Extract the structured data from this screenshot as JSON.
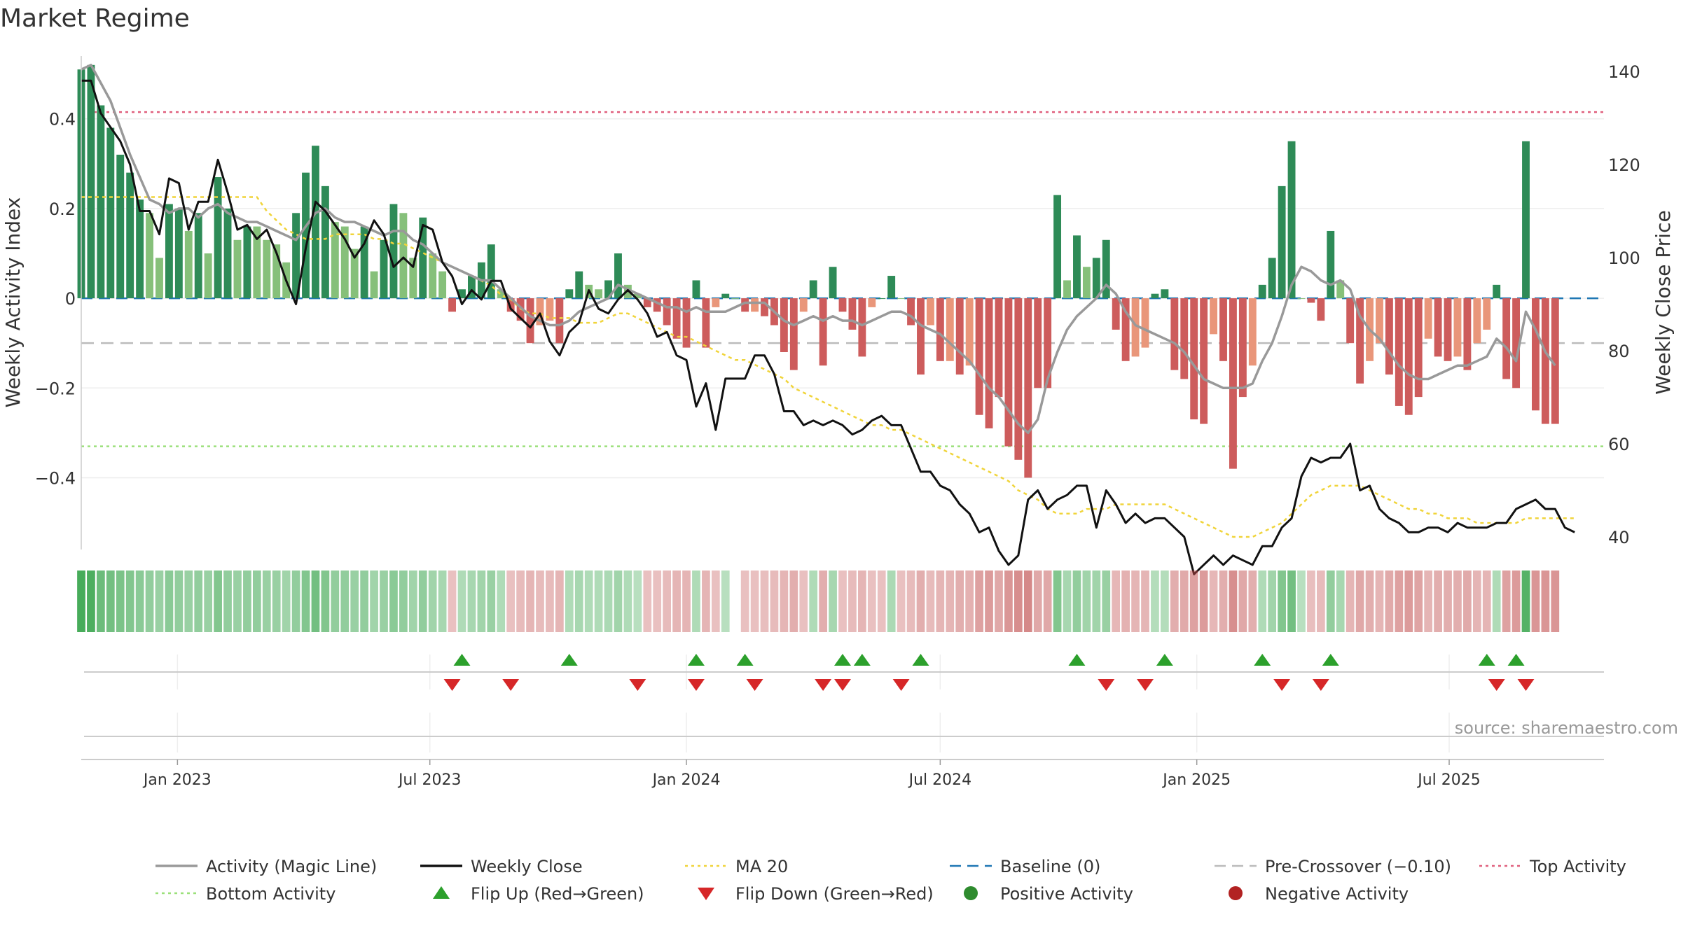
{
  "chart_data": {
    "type": "bar",
    "title": "Market Regime",
    "source": "source: sharemaestro.com",
    "ylabel_left": "Weekly Activity Index",
    "ylabel_right": "Weekly Close Price",
    "xlim": [
      "2022-10-24",
      "2025-10-20"
    ],
    "ylim_left": [
      -0.56,
      0.54
    ],
    "ylim_right": [
      37.3,
      143.3
    ],
    "yticks_left": [
      {
        "v": 0.4,
        "label": "0.4"
      },
      {
        "v": 0.2,
        "label": "0.2"
      },
      {
        "v": 0,
        "label": "0"
      },
      {
        "v": -0.2,
        "label": "−0.2"
      },
      {
        "v": -0.4,
        "label": "−0.4"
      }
    ],
    "yticks_right": [
      {
        "v": 140,
        "label": "140"
      },
      {
        "v": 120,
        "label": "120"
      },
      {
        "v": 100,
        "label": "100"
      },
      {
        "v": 80,
        "label": "80"
      },
      {
        "v": 60,
        "label": "60"
      },
      {
        "v": 40,
        "label": "40"
      }
    ],
    "xticks": [
      {
        "date": "2023-01-01",
        "label": "Jan 2023"
      },
      {
        "date": "2023-07-01",
        "label": "Jul 2023"
      },
      {
        "date": "2024-01-01",
        "label": "Jan 2024"
      },
      {
        "date": "2024-07-01",
        "label": "Jul 2024"
      },
      {
        "date": "2025-01-01",
        "label": "Jan 2025"
      },
      {
        "date": "2025-07-01",
        "label": "Jul 2025"
      }
    ],
    "reference_lines": {
      "top_activity": 0.415,
      "bottom_activity": -0.33,
      "pre_crossover": -0.1,
      "baseline": 0
    },
    "grid": true,
    "legend_placement": "bottom",
    "colors": {
      "strong_positive": "#2e8b57",
      "positive": "#86c07a",
      "strong_negative": "#cd5c5c",
      "negative": "#e9967a",
      "magic_line": "#999999",
      "weekly_close": "#111111",
      "ma20": "#f0d43a",
      "baseline": "#1f77b4",
      "pre_crossover": "#bbbbbb",
      "top_activity": "#e0607e",
      "bottom_activity": "#9be07a",
      "flip_up": "#2ca02c",
      "flip_down": "#d62728",
      "positive_dot": "#2e8b2e",
      "negative_dot": "#b22222"
    },
    "start_date": "2022-10-24",
    "series": [
      {
        "name": "Weekly Activity Index (bars)",
        "values": [
          0.51,
          0.52,
          0.43,
          0.38,
          0.32,
          0.28,
          0.22,
          0.19,
          0.09,
          0.21,
          0.2,
          0.15,
          0.19,
          0.1,
          0.27,
          0.2,
          0.13,
          0.16,
          0.16,
          0.13,
          0.12,
          0.08,
          0.19,
          0.28,
          0.34,
          0.25,
          0.17,
          0.16,
          0.11,
          0.16,
          0.06,
          0.13,
          0.21,
          0.19,
          0.09,
          0.18,
          0.1,
          0.06,
          -0.03,
          0.02,
          0.05,
          0.08,
          0.12,
          0.02,
          -0.03,
          -0.05,
          -0.1,
          -0.06,
          -0.05,
          -0.1,
          0.02,
          0.06,
          0.03,
          0.02,
          0.04,
          0.1,
          0.03,
          0.01,
          -0.02,
          -0.03,
          -0.06,
          -0.09,
          -0.11,
          0.04,
          -0.11,
          -0.02,
          0.01,
          0.0,
          -0.03,
          -0.03,
          -0.04,
          -0.06,
          -0.12,
          -0.16,
          -0.03,
          0.04,
          -0.15,
          0.07,
          -0.03,
          -0.07,
          -0.13,
          -0.02,
          0.0,
          0.05,
          0.0,
          -0.06,
          -0.17,
          -0.06,
          -0.14,
          -0.14,
          -0.17,
          -0.15,
          -0.26,
          -0.29,
          -0.22,
          -0.33,
          -0.36,
          -0.4,
          -0.2,
          -0.2,
          0.23,
          0.04,
          0.14,
          0.07,
          0.09,
          0.13,
          -0.07,
          -0.14,
          -0.13,
          -0.11,
          0.01,
          0.02,
          -0.16,
          -0.18,
          -0.27,
          -0.28,
          -0.08,
          -0.14,
          -0.38,
          -0.22,
          -0.15,
          0.03,
          0.09,
          0.25,
          0.35,
          0.0,
          -0.01,
          -0.05,
          0.15,
          0.04,
          -0.1,
          -0.19,
          -0.14,
          -0.1,
          -0.17,
          -0.24,
          -0.26,
          -0.22,
          -0.09,
          -0.13,
          -0.14,
          -0.13,
          -0.16,
          -0.1,
          -0.07,
          0.03,
          -0.18,
          -0.2,
          0.35,
          -0.25,
          -0.28,
          -0.28
        ]
      },
      {
        "name": "Activity (Magic Line)",
        "values": [
          0.51,
          0.52,
          0.48,
          0.44,
          0.38,
          0.32,
          0.27,
          0.22,
          0.21,
          0.19,
          0.2,
          0.2,
          0.18,
          0.2,
          0.21,
          0.19,
          0.18,
          0.17,
          0.17,
          0.16,
          0.15,
          0.14,
          0.13,
          0.16,
          0.19,
          0.2,
          0.18,
          0.17,
          0.17,
          0.16,
          0.15,
          0.14,
          0.15,
          0.15,
          0.13,
          0.12,
          0.1,
          0.08,
          0.07,
          0.06,
          0.05,
          0.04,
          0.04,
          0.02,
          0.0,
          -0.02,
          -0.04,
          -0.05,
          -0.06,
          -0.06,
          -0.05,
          -0.03,
          -0.02,
          -0.01,
          0.0,
          0.03,
          0.02,
          0.01,
          0.0,
          -0.01,
          -0.02,
          -0.02,
          -0.03,
          -0.02,
          -0.03,
          -0.03,
          -0.03,
          -0.02,
          -0.01,
          -0.01,
          -0.01,
          -0.03,
          -0.05,
          -0.06,
          -0.05,
          -0.04,
          -0.05,
          -0.04,
          -0.05,
          -0.05,
          -0.06,
          -0.05,
          -0.04,
          -0.03,
          -0.03,
          -0.04,
          -0.06,
          -0.07,
          -0.08,
          -0.1,
          -0.12,
          -0.14,
          -0.17,
          -0.2,
          -0.22,
          -0.25,
          -0.28,
          -0.3,
          -0.27,
          -0.18,
          -0.12,
          -0.07,
          -0.04,
          -0.02,
          0.0,
          0.03,
          0.01,
          -0.03,
          -0.06,
          -0.07,
          -0.08,
          -0.09,
          -0.1,
          -0.12,
          -0.15,
          -0.18,
          -0.19,
          -0.2,
          -0.2,
          -0.2,
          -0.19,
          -0.14,
          -0.1,
          -0.04,
          0.03,
          0.07,
          0.06,
          0.04,
          0.03,
          0.04,
          0.02,
          -0.04,
          -0.07,
          -0.09,
          -0.12,
          -0.15,
          -0.17,
          -0.18,
          -0.18,
          -0.17,
          -0.16,
          -0.15,
          -0.15,
          -0.14,
          -0.13,
          -0.09,
          -0.11,
          -0.14,
          -0.03,
          -0.07,
          -0.12,
          -0.15
        ]
      },
      {
        "name": "Weekly Close",
        "values": [
          138,
          138,
          131,
          128,
          125,
          120,
          110,
          110,
          105,
          117,
          116,
          106,
          112,
          112,
          121,
          114,
          106,
          107,
          104,
          106,
          101,
          95,
          90,
          102,
          112,
          110,
          107,
          104,
          100,
          103,
          108,
          105,
          98,
          100,
          98,
          107,
          106,
          99,
          96,
          90,
          93,
          91,
          95,
          95,
          89,
          87,
          85,
          88,
          82,
          79,
          84,
          86,
          93,
          89,
          88,
          91,
          93,
          91,
          88,
          83,
          84,
          79,
          78,
          68,
          73,
          63,
          74,
          74,
          74,
          79,
          79,
          75,
          67,
          67,
          64,
          65,
          64,
          65,
          64,
          62,
          63,
          65,
          66,
          64,
          64,
          59,
          54,
          54,
          51,
          50,
          47,
          45,
          41,
          42,
          37,
          34,
          36,
          48,
          50,
          46,
          48,
          49,
          51,
          51,
          42,
          50,
          47,
          43,
          45,
          43,
          44,
          44,
          42,
          40,
          32,
          34,
          36,
          34,
          36,
          35,
          34,
          38,
          38,
          42,
          44,
          53,
          57,
          56,
          57,
          57,
          60,
          50,
          51,
          46,
          44,
          43,
          41,
          41,
          42,
          42,
          41,
          43,
          42,
          42,
          42,
          43,
          43,
          46,
          47,
          48,
          46,
          46,
          42,
          41
        ]
      },
      {
        "name": "MA 20",
        "values": [
          113,
          113,
          113,
          113,
          113,
          113,
          113,
          113,
          113,
          113,
          113,
          113,
          113,
          113,
          113,
          113,
          113,
          113,
          113,
          110,
          108,
          106,
          105,
          104,
          104,
          104,
          105,
          105,
          105,
          105,
          104,
          104,
          103,
          103,
          102,
          101,
          100,
          99,
          98,
          97,
          96,
          95,
          94,
          92,
          91,
          89,
          88,
          88,
          87,
          87,
          87,
          86,
          86,
          86,
          87,
          88,
          88,
          87,
          86,
          85,
          84,
          83,
          83,
          82,
          81,
          80,
          79,
          78,
          78,
          77,
          76,
          75,
          74,
          72,
          71,
          70,
          69,
          68,
          67,
          66,
          65,
          64,
          64,
          63,
          63,
          62,
          61,
          60,
          59,
          58,
          57,
          56,
          55,
          54,
          53,
          52,
          50,
          49,
          48,
          46,
          45,
          45,
          45,
          46,
          46,
          46,
          47,
          47,
          47,
          47,
          47,
          47,
          46,
          45,
          44,
          43,
          42,
          41,
          40,
          40,
          40,
          41,
          42,
          43,
          45,
          47,
          49,
          50,
          51,
          51,
          51,
          51,
          50,
          49,
          48,
          47,
          46,
          46,
          45,
          45,
          44,
          44,
          44,
          43,
          43,
          43,
          43,
          43,
          44,
          44,
          44,
          44,
          44,
          44
        ]
      }
    ],
    "regime_strip_intensity": [
      0.95,
      0.9,
      0.7,
      0.65,
      0.6,
      0.55,
      0.5,
      0.45,
      0.4,
      0.5,
      0.45,
      0.4,
      0.45,
      0.4,
      0.55,
      0.45,
      0.4,
      0.45,
      0.45,
      0.4,
      0.4,
      0.35,
      0.45,
      0.55,
      0.65,
      0.55,
      0.45,
      0.45,
      0.4,
      0.45,
      0.35,
      0.4,
      0.5,
      0.45,
      0.35,
      0.45,
      0.35,
      0.3,
      -0.2,
      0.25,
      0.3,
      0.35,
      0.4,
      0.25,
      -0.2,
      -0.25,
      -0.3,
      -0.25,
      -0.25,
      -0.3,
      0.25,
      0.3,
      0.25,
      0.25,
      0.28,
      0.35,
      0.25,
      0.2,
      -0.2,
      -0.2,
      -0.25,
      -0.3,
      -0.3,
      0.25,
      -0.3,
      -0.2,
      0.2,
      0.0,
      -0.2,
      -0.2,
      -0.22,
      -0.25,
      -0.3,
      -0.35,
      -0.2,
      0.25,
      -0.35,
      0.3,
      -0.2,
      -0.25,
      -0.3,
      -0.2,
      -0.2,
      0.28,
      -0.2,
      -0.25,
      -0.35,
      -0.25,
      -0.3,
      -0.3,
      -0.35,
      -0.33,
      -0.45,
      -0.5,
      -0.4,
      -0.55,
      -0.6,
      -0.65,
      -0.4,
      -0.4,
      0.55,
      0.3,
      0.45,
      0.35,
      0.35,
      0.4,
      -0.28,
      -0.33,
      -0.3,
      -0.3,
      0.22,
      0.22,
      -0.35,
      -0.38,
      -0.45,
      -0.5,
      -0.28,
      -0.35,
      -0.6,
      -0.4,
      -0.35,
      0.25,
      0.35,
      0.55,
      0.65,
      0.2,
      -0.22,
      -0.25,
      0.45,
      0.3,
      -0.3,
      -0.4,
      -0.35,
      -0.3,
      -0.38,
      -0.45,
      -0.5,
      -0.42,
      -0.3,
      -0.35,
      -0.35,
      -0.35,
      -0.38,
      -0.3,
      -0.3,
      0.25,
      -0.45,
      -0.5,
      0.85,
      -0.55,
      -0.55,
      -0.55
    ],
    "flip_up_weeks": [
      39,
      50,
      63,
      68,
      78,
      80,
      86,
      102,
      111,
      121,
      128,
      144,
      147
    ],
    "flip_down_weeks": [
      38,
      44,
      57,
      63,
      69,
      76,
      78,
      84,
      105,
      109,
      123,
      127,
      145,
      148
    ],
    "legend": [
      {
        "label": "Activity (Magic Line)",
        "symbol": "line",
        "color": "#999999"
      },
      {
        "label": "Weekly Close",
        "symbol": "line",
        "color": "#111111"
      },
      {
        "label": "MA 20",
        "symbol": "dotted",
        "color": "#f0d43a"
      },
      {
        "label": "Baseline (0)",
        "symbol": "dashed",
        "color": "#1f77b4"
      },
      {
        "label": "Pre-Crossover (−0.10)",
        "symbol": "dashed",
        "color": "#bbbbbb"
      },
      {
        "label": "Top Activity",
        "symbol": "dotted",
        "color": "#e0607e"
      },
      {
        "label": "Bottom Activity",
        "symbol": "dotted",
        "color": "#9be07a"
      },
      {
        "label": "Flip Up (Red→Green)",
        "symbol": "triangle-up",
        "color": "#2ca02c"
      },
      {
        "label": "Flip Down (Green→Red)",
        "symbol": "triangle-down",
        "color": "#d62728"
      },
      {
        "label": "Positive Activity",
        "symbol": "dot",
        "color": "#2e8b2e"
      },
      {
        "label": "Negative Activity",
        "symbol": "dot",
        "color": "#b22222"
      }
    ]
  }
}
